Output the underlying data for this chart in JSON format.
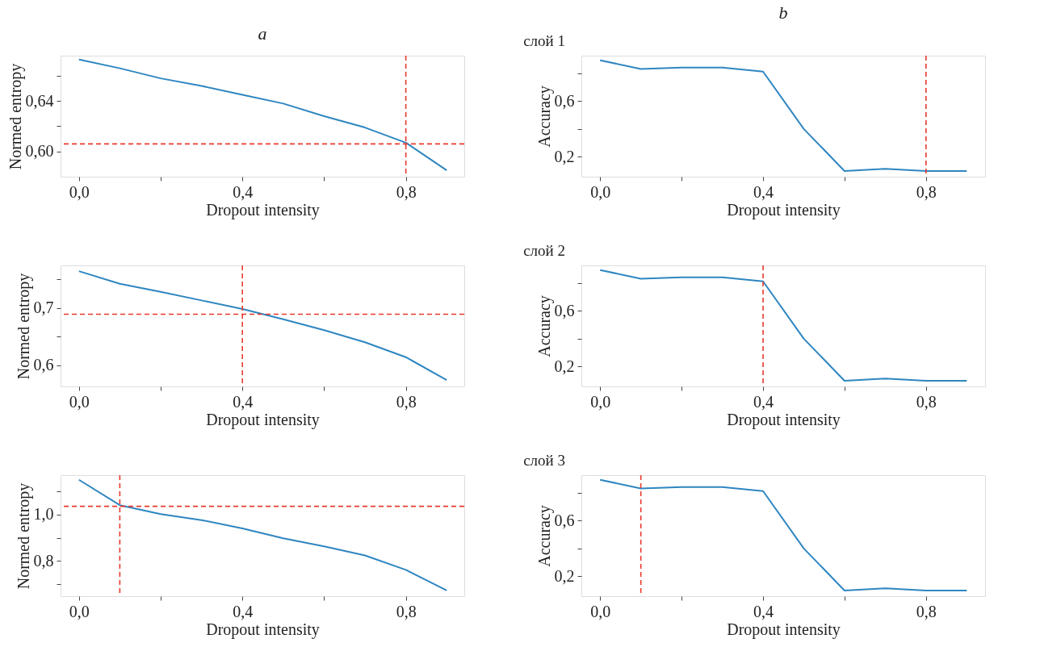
{
  "chart_data": [
    {
      "type": "line",
      "title": "a",
      "xlabel": "Dropout intensity",
      "ylabel": "Normed entropy",
      "x": [
        0.0,
        0.1,
        0.2,
        0.3,
        0.4,
        0.5,
        0.6,
        0.7,
        0.8,
        0.9
      ],
      "series": [
        {
          "color": "#2e86c1",
          "line_style": "solid",
          "values": [
            0.673,
            0.666,
            0.658,
            0.652,
            0.645,
            0.638,
            0.628,
            0.619,
            0.607,
            0.585
          ]
        }
      ],
      "xlim": [
        -0.045,
        0.943
      ],
      "ylim": [
        0.58,
        0.676
      ],
      "xticks": [
        {
          "value": 0.0,
          "label": "0,0"
        },
        {
          "value": 0.2,
          "label": null
        },
        {
          "value": 0.4,
          "label": "0,4"
        },
        {
          "value": 0.6,
          "label": null
        },
        {
          "value": 0.8,
          "label": "0,8"
        }
      ],
      "yticks": [
        {
          "value": 0.6,
          "label": "0,60"
        },
        {
          "value": 0.62,
          "label": null
        },
        {
          "value": 0.64,
          "label": "0,64"
        },
        {
          "value": 0.66,
          "label": null
        }
      ],
      "ref_lines": [
        {
          "axis": "x",
          "value": 0.8,
          "color": "#e8392c",
          "line_style": "dashed"
        },
        {
          "axis": "y",
          "value": 0.606,
          "color": "#e8392c",
          "line_style": "dashed"
        }
      ],
      "grid": false
    },
    {
      "type": "line",
      "title": "b",
      "annotations": [
        "слой 1"
      ],
      "xlabel": "Dropout intensity",
      "ylabel": "Accuracy",
      "x": [
        0.0,
        0.1,
        0.2,
        0.3,
        0.4,
        0.5,
        0.6,
        0.7,
        0.8,
        0.9
      ],
      "series": [
        {
          "color": "#2e86c1",
          "values": [
            0.895,
            0.832,
            0.842,
            0.842,
            0.813,
            0.4,
            0.097,
            0.113,
            0.097,
            0.097
          ]
        }
      ],
      "xlim": [
        -0.046,
        0.945
      ],
      "ylim": [
        0.056,
        0.928
      ],
      "xticks": [
        {
          "value": 0.0,
          "label": "0,0"
        },
        {
          "value": 0.2,
          "label": null
        },
        {
          "value": 0.4,
          "label": "0,4"
        },
        {
          "value": 0.6,
          "label": null
        },
        {
          "value": 0.8,
          "label": "0,8"
        }
      ],
      "yticks": [
        {
          "value": 0.2,
          "label": "0,2"
        },
        {
          "value": 0.4,
          "label": null
        },
        {
          "value": 0.6,
          "label": "0,6"
        },
        {
          "value": 0.8,
          "label": null
        }
      ],
      "ref_lines": [
        {
          "axis": "x",
          "value": 0.8,
          "color": "#e8392c",
          "line_style": "dashed"
        }
      ],
      "grid": false
    },
    {
      "type": "line",
      "xlabel": "Dropout intensity",
      "ylabel": "Normed entropy",
      "x": [
        0.0,
        0.1,
        0.2,
        0.3,
        0.4,
        0.5,
        0.6,
        0.7,
        0.8,
        0.9
      ],
      "series": [
        {
          "color": "#2e86c1",
          "line_style": "solid",
          "values": [
            0.764,
            0.742,
            0.728,
            0.713,
            0.698,
            0.68,
            0.661,
            0.64,
            0.614,
            0.574
          ]
        }
      ],
      "xlim": [
        -0.045,
        0.943
      ],
      "ylim": [
        0.563,
        0.774
      ],
      "xticks": [
        {
          "value": 0.0,
          "label": "0,0"
        },
        {
          "value": 0.2,
          "label": null
        },
        {
          "value": 0.4,
          "label": "0,4"
        },
        {
          "value": 0.6,
          "label": null
        },
        {
          "value": 0.8,
          "label": "0,8"
        }
      ],
      "yticks": [
        {
          "value": 0.6,
          "label": "0,6"
        },
        {
          "value": 0.65,
          "label": null
        },
        {
          "value": 0.7,
          "label": "0,7"
        },
        {
          "value": 0.75,
          "label": null
        }
      ],
      "ref_lines": [
        {
          "axis": "x",
          "value": 0.4,
          "color": "#e8392c",
          "line_style": "dashed"
        },
        {
          "axis": "y",
          "value": 0.689,
          "color": "#e8392c",
          "line_style": "dashed"
        }
      ],
      "grid": false
    },
    {
      "type": "line",
      "annotations": [
        "слой 2"
      ],
      "xlabel": "Dropout intensity",
      "ylabel": "Accuracy",
      "x": [
        0.0,
        0.1,
        0.2,
        0.3,
        0.4,
        0.5,
        0.6,
        0.7,
        0.8,
        0.9
      ],
      "series": [
        {
          "color": "#2e86c1",
          "values": [
            0.895,
            0.832,
            0.842,
            0.842,
            0.813,
            0.4,
            0.097,
            0.113,
            0.097,
            0.097
          ]
        }
      ],
      "xlim": [
        -0.046,
        0.945
      ],
      "ylim": [
        0.056,
        0.928
      ],
      "xticks": [
        {
          "value": 0.0,
          "label": "0,0"
        },
        {
          "value": 0.2,
          "label": null
        },
        {
          "value": 0.4,
          "label": "0,4"
        },
        {
          "value": 0.6,
          "label": null
        },
        {
          "value": 0.8,
          "label": "0,8"
        }
      ],
      "yticks": [
        {
          "value": 0.2,
          "label": "0,2"
        },
        {
          "value": 0.4,
          "label": null
        },
        {
          "value": 0.6,
          "label": "0,6"
        },
        {
          "value": 0.8,
          "label": null
        }
      ],
      "ref_lines": [
        {
          "axis": "x",
          "value": 0.4,
          "color": "#e8392c",
          "line_style": "dashed"
        }
      ],
      "grid": false
    },
    {
      "type": "line",
      "xlabel": "Dropout intensity",
      "ylabel": "Normed entropy",
      "x": [
        0.0,
        0.1,
        0.2,
        0.3,
        0.4,
        0.5,
        0.6,
        0.7,
        0.8,
        0.9
      ],
      "series": [
        {
          "color": "#2e86c1",
          "line_style": "solid",
          "values": [
            1.149,
            1.04,
            1.002,
            0.976,
            0.94,
            0.898,
            0.863,
            0.824,
            0.762,
            0.674
          ]
        }
      ],
      "xlim": [
        -0.045,
        0.943
      ],
      "ylim": [
        0.649,
        1.169
      ],
      "xticks": [
        {
          "value": 0.0,
          "label": "0,0"
        },
        {
          "value": 0.2,
          "label": null
        },
        {
          "value": 0.4,
          "label": "0,4"
        },
        {
          "value": 0.6,
          "label": null
        },
        {
          "value": 0.8,
          "label": "0,8"
        }
      ],
      "yticks": [
        {
          "value": 0.7,
          "label": null
        },
        {
          "value": 0.8,
          "label": "0,8"
        },
        {
          "value": 0.9,
          "label": null
        },
        {
          "value": 1.0,
          "label": "1,0"
        },
        {
          "value": 1.1,
          "label": null
        }
      ],
      "ref_lines": [
        {
          "axis": "x",
          "value": 0.1,
          "color": "#e8392c",
          "line_style": "dashed"
        },
        {
          "axis": "y",
          "value": 1.035,
          "color": "#e8392c",
          "line_style": "dashed"
        }
      ],
      "grid": false
    },
    {
      "type": "line",
      "annotations": [
        "слой 3"
      ],
      "xlabel": "Dropout intensity",
      "ylabel": "Accuracy",
      "x": [
        0.0,
        0.1,
        0.2,
        0.3,
        0.4,
        0.5,
        0.6,
        0.7,
        0.8,
        0.9
      ],
      "series": [
        {
          "color": "#2e86c1",
          "values": [
            0.895,
            0.832,
            0.842,
            0.842,
            0.813,
            0.4,
            0.097,
            0.113,
            0.097,
            0.097
          ]
        }
      ],
      "xlim": [
        -0.046,
        0.945
      ],
      "ylim": [
        0.056,
        0.928
      ],
      "xticks": [
        {
          "value": 0.0,
          "label": "0,0"
        },
        {
          "value": 0.2,
          "label": null
        },
        {
          "value": 0.4,
          "label": "0,4"
        },
        {
          "value": 0.6,
          "label": null
        },
        {
          "value": 0.8,
          "label": "0,8"
        }
      ],
      "yticks": [
        {
          "value": 0.2,
          "label": "0,2"
        },
        {
          "value": 0.4,
          "label": null
        },
        {
          "value": 0.6,
          "label": "0,6"
        },
        {
          "value": 0.8,
          "label": null
        }
      ],
      "ref_lines": [
        {
          "axis": "x",
          "value": 0.1,
          "color": "#e8392c",
          "line_style": "dashed"
        }
      ],
      "grid": false
    }
  ]
}
